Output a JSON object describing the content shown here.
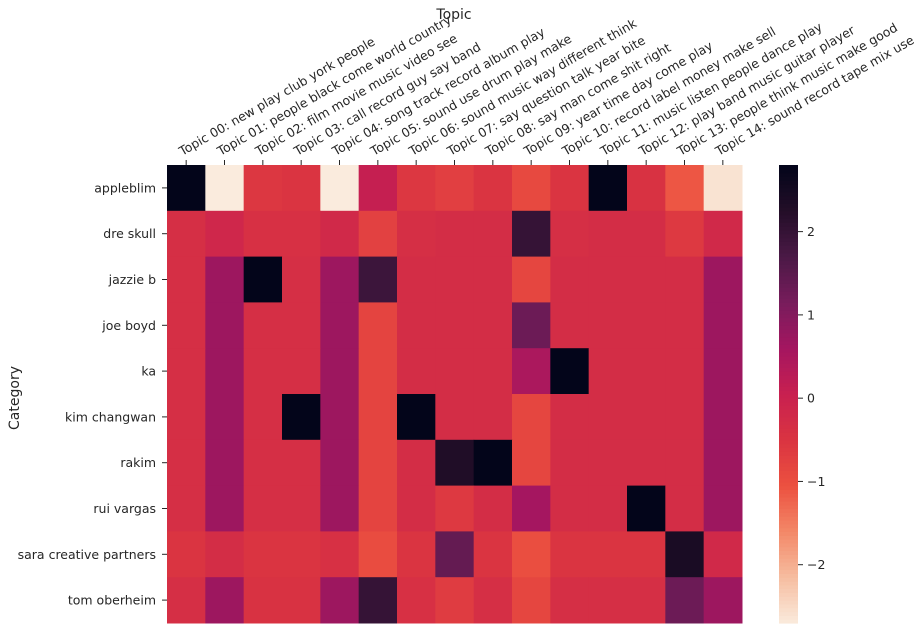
{
  "chart_data": {
    "type": "heatmap",
    "title": "Topic",
    "xlabel": "",
    "ylabel": "Category",
    "x_position": "top",
    "columns": [
      "Topic 00: new play club york people",
      "Topic 01: people black come world country",
      "Topic 02: film movie music video see",
      "Topic 03: call record guy say band",
      "Topic 04: song track record album play",
      "Topic 05: sound use drum play make",
      "Topic 06: sound music way different think",
      "Topic 07: say question talk year bite",
      "Topic 08: say man come shit right",
      "Topic 09: year time day come play",
      "Topic 10: record label money make sell",
      "Topic 11: music listen people dance play",
      "Topic 12: play band music guitar player",
      "Topic 13: people think music make good",
      "Topic 14: sound record tape mix use"
    ],
    "rows": [
      "appleblim",
      "dre skull",
      "jazzie b",
      "joe boyd",
      "ka",
      "kim changwan",
      "rakim",
      "rui vargas",
      "sara creative partners",
      "tom oberheim"
    ],
    "values": [
      [
        2.8,
        -2.7,
        -0.55,
        -0.5,
        -2.7,
        0.1,
        -0.55,
        -0.7,
        -0.5,
        -0.9,
        -0.5,
        2.8,
        -0.45,
        -1.1,
        -2.6
      ],
      [
        -0.35,
        -0.15,
        -0.4,
        -0.4,
        -0.2,
        -0.75,
        -0.35,
        -0.3,
        -0.3,
        2.0,
        -0.35,
        -0.3,
        -0.3,
        -0.6,
        -0.2
      ],
      [
        -0.35,
        0.7,
        2.8,
        -0.35,
        0.7,
        1.9,
        -0.3,
        -0.3,
        -0.3,
        -0.85,
        -0.3,
        -0.3,
        -0.3,
        -0.3,
        0.7
      ],
      [
        -0.35,
        0.7,
        -0.35,
        -0.35,
        0.7,
        -0.8,
        -0.3,
        -0.3,
        -0.3,
        1.3,
        -0.3,
        -0.3,
        -0.3,
        -0.3,
        0.7
      ],
      [
        -0.35,
        0.7,
        -0.35,
        -0.35,
        0.7,
        -0.8,
        -0.3,
        -0.3,
        -0.3,
        0.5,
        2.8,
        -0.3,
        -0.3,
        -0.3,
        0.7
      ],
      [
        -0.35,
        0.7,
        -0.35,
        2.8,
        0.7,
        -0.8,
        2.8,
        -0.3,
        -0.3,
        -0.85,
        -0.3,
        -0.3,
        -0.3,
        -0.3,
        0.7
      ],
      [
        -0.35,
        0.7,
        -0.35,
        -0.35,
        0.7,
        -0.8,
        -0.3,
        2.3,
        2.8,
        -0.85,
        -0.3,
        -0.3,
        -0.3,
        -0.3,
        0.7
      ],
      [
        -0.35,
        0.7,
        -0.35,
        -0.35,
        0.7,
        -0.8,
        -0.3,
        -0.6,
        -0.3,
        0.6,
        -0.3,
        -0.3,
        2.8,
        -0.3,
        0.7
      ],
      [
        -0.5,
        -0.3,
        -0.5,
        -0.5,
        -0.4,
        -0.95,
        -0.5,
        1.4,
        -0.5,
        -1.0,
        -0.5,
        -0.5,
        -0.5,
        2.4,
        -0.2
      ],
      [
        -0.35,
        0.7,
        -0.45,
        -0.45,
        0.7,
        2.0,
        -0.4,
        -0.65,
        -0.35,
        -0.85,
        -0.35,
        -0.35,
        -0.35,
        1.3,
        0.7
      ]
    ],
    "vmin": -2.7,
    "vmax": 2.8,
    "colormap": "rocket",
    "colorbar_ticks": [
      -2,
      -1,
      0,
      1,
      2
    ],
    "grid": false
  }
}
